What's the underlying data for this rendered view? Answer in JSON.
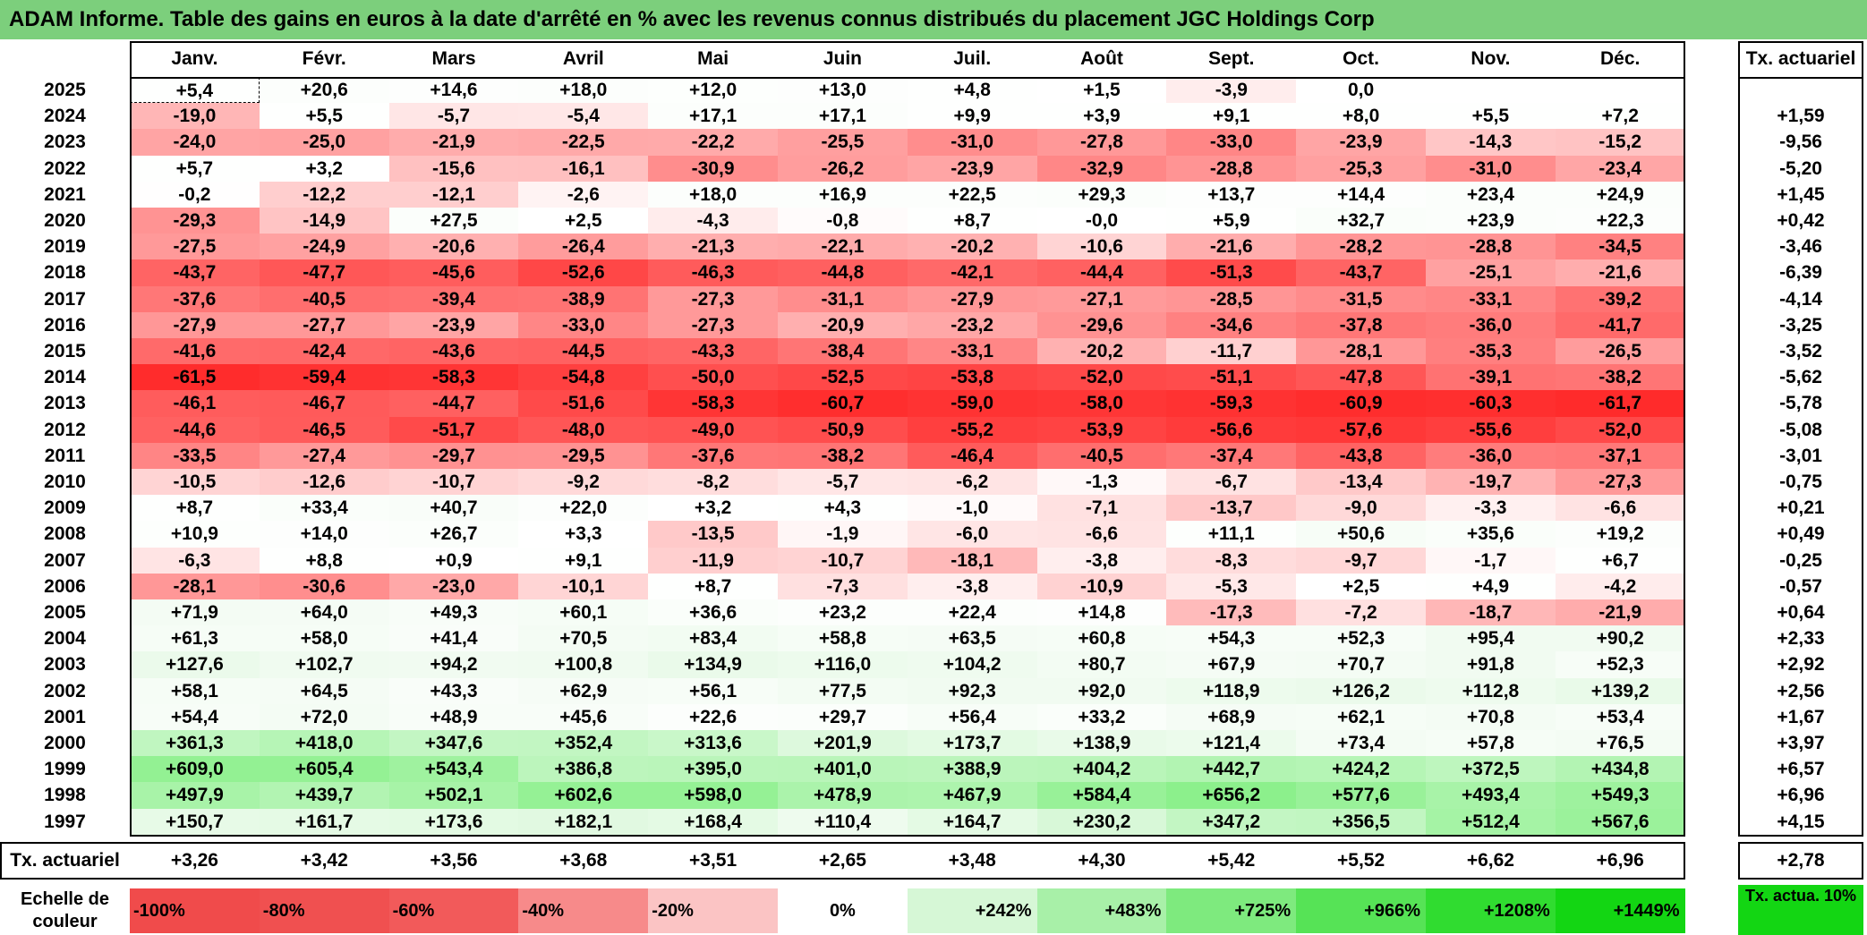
{
  "title": "ADAM Informe. Table des gains en euros à la date d'arrêté en % avec les revenus connus distribués du placement JGC Holdings Corp",
  "months": [
    "Janv.",
    "Févr.",
    "Mars",
    "Avril",
    "Mai",
    "Juin",
    "Juil.",
    "Août",
    "Sept.",
    "Oct.",
    "Nov.",
    "Déc."
  ],
  "rate_header": "Tx. actuariel",
  "rows": [
    {
      "year": "2025",
      "values": [
        "+5,4",
        "+20,6",
        "+14,6",
        "+18,0",
        "+12,0",
        "+13,0",
        "+4,8",
        "+1,5",
        "-3,9",
        "0,0",
        "",
        ""
      ],
      "rate": ""
    },
    {
      "year": "2024",
      "values": [
        "-19,0",
        "+5,5",
        "-5,7",
        "-5,4",
        "+17,1",
        "+17,1",
        "+9,9",
        "+3,9",
        "+9,1",
        "+8,0",
        "+5,5",
        "+7,2"
      ],
      "rate": "+1,59"
    },
    {
      "year": "2023",
      "values": [
        "-24,0",
        "-25,0",
        "-21,9",
        "-22,5",
        "-22,2",
        "-25,5",
        "-31,0",
        "-27,8",
        "-33,0",
        "-23,9",
        "-14,3",
        "-15,2"
      ],
      "rate": "-9,56"
    },
    {
      "year": "2022",
      "values": [
        "+5,7",
        "+3,2",
        "-15,6",
        "-16,1",
        "-30,9",
        "-26,2",
        "-23,9",
        "-32,9",
        "-28,8",
        "-25,3",
        "-31,0",
        "-23,4"
      ],
      "rate": "-5,20"
    },
    {
      "year": "2021",
      "values": [
        "-0,2",
        "-12,2",
        "-12,1",
        "-2,6",
        "+18,0",
        "+16,9",
        "+22,5",
        "+29,3",
        "+13,7",
        "+14,4",
        "+23,4",
        "+24,9"
      ],
      "rate": "+1,45"
    },
    {
      "year": "2020",
      "values": [
        "-29,3",
        "-14,9",
        "+27,5",
        "+2,5",
        "-4,3",
        "-0,8",
        "+8,7",
        "-0,0",
        "+5,9",
        "+32,7",
        "+23,9",
        "+22,3"
      ],
      "rate": "+0,42"
    },
    {
      "year": "2019",
      "values": [
        "-27,5",
        "-24,9",
        "-20,6",
        "-26,4",
        "-21,3",
        "-22,1",
        "-20,2",
        "-10,6",
        "-21,6",
        "-28,2",
        "-28,8",
        "-34,5"
      ],
      "rate": "-3,46"
    },
    {
      "year": "2018",
      "values": [
        "-43,7",
        "-47,7",
        "-45,6",
        "-52,6",
        "-46,3",
        "-44,8",
        "-42,1",
        "-44,4",
        "-51,3",
        "-43,7",
        "-25,1",
        "-21,6"
      ],
      "rate": "-6,39"
    },
    {
      "year": "2017",
      "values": [
        "-37,6",
        "-40,5",
        "-39,4",
        "-38,9",
        "-27,3",
        "-31,1",
        "-27,9",
        "-27,1",
        "-28,5",
        "-31,5",
        "-33,1",
        "-39,2"
      ],
      "rate": "-4,14"
    },
    {
      "year": "2016",
      "values": [
        "-27,9",
        "-27,7",
        "-23,9",
        "-33,0",
        "-27,3",
        "-20,9",
        "-23,2",
        "-29,6",
        "-34,6",
        "-37,8",
        "-36,0",
        "-41,7"
      ],
      "rate": "-3,25"
    },
    {
      "year": "2015",
      "values": [
        "-41,6",
        "-42,4",
        "-43,6",
        "-44,5",
        "-43,3",
        "-38,4",
        "-33,1",
        "-20,2",
        "-11,7",
        "-28,1",
        "-35,3",
        "-26,5"
      ],
      "rate": "-3,52"
    },
    {
      "year": "2014",
      "values": [
        "-61,5",
        "-59,4",
        "-58,3",
        "-54,8",
        "-50,0",
        "-52,5",
        "-53,8",
        "-52,0",
        "-51,1",
        "-47,8",
        "-39,1",
        "-38,2"
      ],
      "rate": "-5,62"
    },
    {
      "year": "2013",
      "values": [
        "-46,1",
        "-46,7",
        "-44,7",
        "-51,6",
        "-58,3",
        "-60,7",
        "-59,0",
        "-58,0",
        "-59,3",
        "-60,9",
        "-60,3",
        "-61,7"
      ],
      "rate": "-5,78"
    },
    {
      "year": "2012",
      "values": [
        "-44,6",
        "-46,5",
        "-51,7",
        "-48,0",
        "-49,0",
        "-50,9",
        "-55,2",
        "-53,9",
        "-56,6",
        "-57,6",
        "-55,6",
        "-52,0"
      ],
      "rate": "-5,08"
    },
    {
      "year": "2011",
      "values": [
        "-33,5",
        "-27,4",
        "-29,7",
        "-29,5",
        "-37,6",
        "-38,2",
        "-46,4",
        "-40,5",
        "-37,4",
        "-43,8",
        "-36,0",
        "-37,1"
      ],
      "rate": "-3,01"
    },
    {
      "year": "2010",
      "values": [
        "-10,5",
        "-12,6",
        "-10,7",
        "-9,2",
        "-8,2",
        "-5,7",
        "-6,2",
        "-1,3",
        "-6,7",
        "-13,4",
        "-19,7",
        "-27,3"
      ],
      "rate": "-0,75"
    },
    {
      "year": "2009",
      "values": [
        "+8,7",
        "+33,4",
        "+40,7",
        "+22,0",
        "+3,2",
        "+4,3",
        "-1,0",
        "-7,1",
        "-13,7",
        "-9,0",
        "-3,3",
        "-6,6"
      ],
      "rate": "+0,21"
    },
    {
      "year": "2008",
      "values": [
        "+10,9",
        "+14,0",
        "+26,7",
        "+3,3",
        "-13,5",
        "-1,9",
        "-6,0",
        "-6,6",
        "+11,1",
        "+50,6",
        "+35,6",
        "+19,2"
      ],
      "rate": "+0,49"
    },
    {
      "year": "2007",
      "values": [
        "-6,3",
        "+8,8",
        "+0,9",
        "+9,1",
        "-11,9",
        "-10,7",
        "-18,1",
        "-3,8",
        "-8,3",
        "-9,7",
        "-1,7",
        "+6,7"
      ],
      "rate": "-0,25"
    },
    {
      "year": "2006",
      "values": [
        "-28,1",
        "-30,6",
        "-23,0",
        "-10,1",
        "+8,7",
        "-7,3",
        "-3,8",
        "-10,9",
        "-5,3",
        "+2,5",
        "+4,9",
        "-4,2"
      ],
      "rate": "-0,57"
    },
    {
      "year": "2005",
      "values": [
        "+71,9",
        "+64,0",
        "+49,3",
        "+60,1",
        "+36,6",
        "+23,2",
        "+22,4",
        "+14,8",
        "-17,3",
        "-7,2",
        "-18,7",
        "-21,9"
      ],
      "rate": "+0,64"
    },
    {
      "year": "2004",
      "values": [
        "+61,3",
        "+58,0",
        "+41,4",
        "+70,5",
        "+83,4",
        "+58,8",
        "+63,5",
        "+60,8",
        "+54,3",
        "+52,3",
        "+95,4",
        "+90,2"
      ],
      "rate": "+2,33"
    },
    {
      "year": "2003",
      "values": [
        "+127,6",
        "+102,7",
        "+94,2",
        "+100,8",
        "+134,9",
        "+116,0",
        "+104,2",
        "+80,7",
        "+67,9",
        "+70,7",
        "+91,8",
        "+52,3"
      ],
      "rate": "+2,92"
    },
    {
      "year": "2002",
      "values": [
        "+58,1",
        "+64,5",
        "+43,3",
        "+62,9",
        "+56,1",
        "+77,5",
        "+92,3",
        "+92,0",
        "+118,9",
        "+126,2",
        "+112,8",
        "+139,2"
      ],
      "rate": "+2,56"
    },
    {
      "year": "2001",
      "values": [
        "+54,4",
        "+72,0",
        "+48,9",
        "+45,6",
        "+22,6",
        "+29,7",
        "+56,4",
        "+33,2",
        "+68,9",
        "+62,1",
        "+70,8",
        "+53,4"
      ],
      "rate": "+1,67"
    },
    {
      "year": "2000",
      "values": [
        "+361,3",
        "+418,0",
        "+347,6",
        "+352,4",
        "+313,6",
        "+201,9",
        "+173,7",
        "+138,9",
        "+121,4",
        "+73,4",
        "+57,8",
        "+76,5"
      ],
      "rate": "+3,97"
    },
    {
      "year": "1999",
      "values": [
        "+609,0",
        "+605,4",
        "+543,4",
        "+386,8",
        "+395,0",
        "+401,0",
        "+388,9",
        "+404,2",
        "+442,7",
        "+424,2",
        "+372,5",
        "+434,8"
      ],
      "rate": "+6,57"
    },
    {
      "year": "1998",
      "values": [
        "+497,9",
        "+439,7",
        "+502,1",
        "+602,6",
        "+598,0",
        "+478,9",
        "+467,9",
        "+584,4",
        "+656,2",
        "+577,6",
        "+493,4",
        "+549,3"
      ],
      "rate": "+6,96"
    },
    {
      "year": "1997",
      "values": [
        "+150,7",
        "+161,7",
        "+173,6",
        "+182,1",
        "+168,4",
        "+110,4",
        "+164,7",
        "+230,2",
        "+347,2",
        "+356,5",
        "+512,4",
        "+567,6"
      ],
      "rate": "+4,15"
    }
  ],
  "footer": {
    "label": "Tx. actuariel",
    "values": [
      "+3,26",
      "+3,42",
      "+3,56",
      "+3,68",
      "+3,51",
      "+2,65",
      "+3,48",
      "+4,30",
      "+5,42",
      "+5,52",
      "+6,62",
      "+6,96"
    ],
    "rate": "+2,78"
  },
  "scale": {
    "label": "Echelle de couleur",
    "steps": [
      {
        "label": "-100%",
        "color": "#f04b4b"
      },
      {
        "label": "-80%",
        "color": "#f05050"
      },
      {
        "label": "-60%",
        "color": "#f25a5a"
      },
      {
        "label": "-40%",
        "color": "#f78a8a"
      },
      {
        "label": "-20%",
        "color": "#fbc4c4"
      },
      {
        "label": "0%",
        "color": "#ffffff"
      },
      {
        "label": "+242%",
        "color": "#d6f7d6"
      },
      {
        "label": "+483%",
        "color": "#a8f0a8"
      },
      {
        "label": "+725%",
        "color": "#7eea7e"
      },
      {
        "label": "+966%",
        "color": "#56e356"
      },
      {
        "label": "+1208%",
        "color": "#30dc30"
      },
      {
        "label": "+1449%",
        "color": "#13d613"
      }
    ],
    "rate_label": "Tx. actua. 10%",
    "rate_color": "#13d613"
  }
}
